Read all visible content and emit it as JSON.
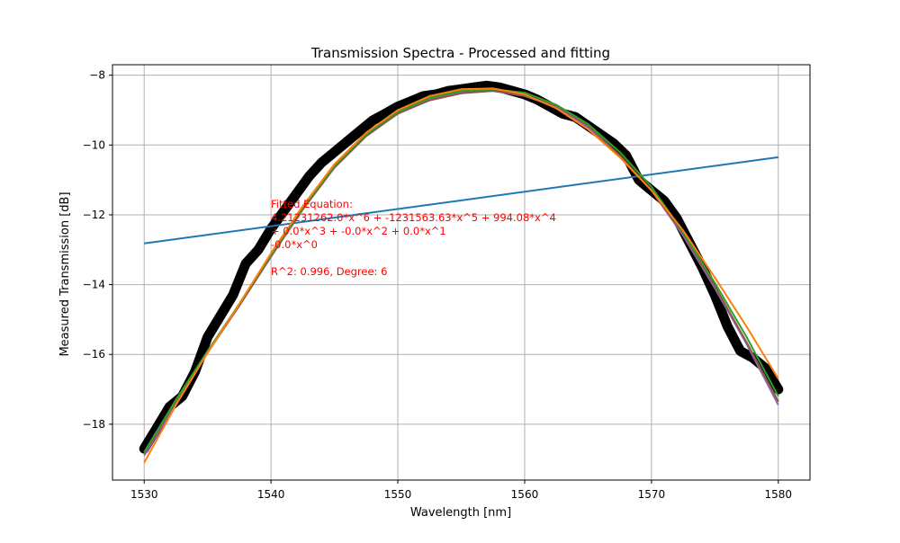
{
  "chart_data": {
    "type": "line",
    "title": "Transmission Spectra - Processed and fitting",
    "xlabel": "Wavelength [nm]",
    "ylabel": "Measured Transmission [dB]",
    "xlim": [
      1527.5,
      1582.5
    ],
    "ylim": [
      -19.6,
      -7.7
    ],
    "x_ticks": [
      1530,
      1540,
      1550,
      1560,
      1570,
      1580
    ],
    "y_ticks": [
      -18,
      -16,
      -14,
      -12,
      -10,
      -8
    ],
    "grid": true,
    "annotation": {
      "color": "#ff0000",
      "lines": [
        "Fitted Equation:",
        "4.21231262.0*x^6 + -1231563.63*x^5 + 994.08*x^4",
        "+ 0.0*x^3 + -0.0*x^2 + 0.0*x^1",
        "-0.0*x^0",
        "",
        "R^2: 0.996, Degree: 6"
      ]
    },
    "series": [
      {
        "style": "scatter-thick",
        "color": "#000000",
        "x": [
          1530,
          1531,
          1532,
          1533,
          1534,
          1535,
          1536,
          1537,
          1538,
          1539,
          1540,
          1541,
          1542,
          1543,
          1544,
          1545,
          1546,
          1547,
          1548,
          1549,
          1550,
          1551,
          1552,
          1553,
          1554,
          1555,
          1556,
          1557,
          1558,
          1559,
          1560,
          1561,
          1562,
          1563,
          1564,
          1565,
          1566,
          1567,
          1568,
          1569,
          1570,
          1571,
          1572,
          1573,
          1574,
          1575,
          1576,
          1577,
          1578,
          1579,
          1580
        ],
        "values": [
          -18.7,
          -18.1,
          -17.5,
          -17.2,
          -16.5,
          -15.5,
          -14.9,
          -14.3,
          -13.4,
          -13.0,
          -12.4,
          -11.9,
          -11.4,
          -10.9,
          -10.5,
          -10.2,
          -9.9,
          -9.6,
          -9.3,
          -9.1,
          -8.9,
          -8.75,
          -8.6,
          -8.55,
          -8.45,
          -8.4,
          -8.35,
          -8.3,
          -8.35,
          -8.45,
          -8.55,
          -8.7,
          -8.9,
          -9.1,
          -9.2,
          -9.45,
          -9.7,
          -9.95,
          -10.3,
          -11.0,
          -11.3,
          -11.6,
          -12.1,
          -12.8,
          -13.5,
          -14.3,
          -15.2,
          -15.9,
          -16.1,
          -16.4,
          -17.0
        ]
      },
      {
        "style": "line",
        "color": "#1f77b4",
        "x": [
          1530,
          1580
        ],
        "values": [
          -12.82,
          -10.35
        ]
      },
      {
        "style": "line",
        "color": "#9467bd",
        "x": [
          1530,
          1532.5,
          1535,
          1537.5,
          1540,
          1542.5,
          1545,
          1547.5,
          1550,
          1552.5,
          1555,
          1557.5,
          1560,
          1562.5,
          1565,
          1567.5,
          1570,
          1572.5,
          1575,
          1577.5,
          1580
        ],
        "values": [
          -18.9,
          -17.4,
          -15.9,
          -14.6,
          -13.2,
          -11.8,
          -10.6,
          -9.7,
          -9.1,
          -8.7,
          -8.5,
          -8.45,
          -8.6,
          -8.9,
          -9.5,
          -10.3,
          -11.3,
          -12.6,
          -14.1,
          -15.7,
          -17.45
        ]
      },
      {
        "style": "line",
        "color": "#8c564b",
        "x": [
          1530,
          1532.5,
          1535,
          1537.5,
          1540,
          1542.5,
          1545,
          1547.5,
          1550,
          1552.5,
          1555,
          1557.5,
          1560,
          1562.5,
          1565,
          1567.5,
          1570,
          1572.5,
          1575,
          1577.5,
          1580
        ],
        "values": [
          -18.85,
          -17.35,
          -15.95,
          -14.6,
          -13.2,
          -11.85,
          -10.65,
          -9.75,
          -9.1,
          -8.72,
          -8.52,
          -8.45,
          -8.58,
          -8.88,
          -9.45,
          -10.3,
          -11.3,
          -12.55,
          -14.05,
          -15.65,
          -17.35
        ]
      },
      {
        "style": "line",
        "color": "#2ca02c",
        "x": [
          1530,
          1532.5,
          1535,
          1537.5,
          1540,
          1542.5,
          1545,
          1547.5,
          1550,
          1552.5,
          1555,
          1557.5,
          1560,
          1562.5,
          1565,
          1567.5,
          1570,
          1572.5,
          1575,
          1577.5,
          1580
        ],
        "values": [
          -18.8,
          -17.3,
          -15.9,
          -14.55,
          -13.15,
          -11.8,
          -10.6,
          -9.7,
          -9.05,
          -8.65,
          -8.45,
          -8.4,
          -8.5,
          -8.85,
          -9.4,
          -10.2,
          -11.2,
          -12.5,
          -13.95,
          -15.5,
          -17.2
        ]
      },
      {
        "style": "line",
        "color": "#ff7f0e",
        "x": [
          1530,
          1532.5,
          1535,
          1537.5,
          1540,
          1542.5,
          1545,
          1547.5,
          1550,
          1552.5,
          1555,
          1557.5,
          1560,
          1562.5,
          1565,
          1567.5,
          1570,
          1572.5,
          1575,
          1577.5,
          1580
        ],
        "values": [
          -19.1,
          -17.45,
          -15.95,
          -14.55,
          -13.1,
          -11.75,
          -10.55,
          -9.65,
          -9.0,
          -8.6,
          -8.4,
          -8.38,
          -8.55,
          -8.95,
          -9.55,
          -10.35,
          -11.3,
          -12.45,
          -13.8,
          -15.2,
          -16.7
        ]
      }
    ]
  }
}
